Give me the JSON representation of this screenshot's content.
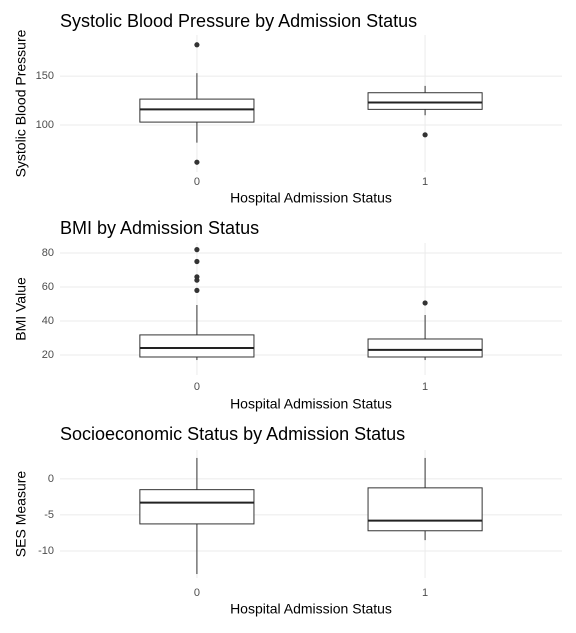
{
  "chart_data": [
    {
      "type": "box",
      "title": "Systolic Blood Pressure by Admission Status",
      "x_label": "Hospital Admission Status",
      "y_label": "Systolic Blood Pressure",
      "categories": [
        "0",
        "1"
      ],
      "boxes": [
        {
          "whisker_low": 82,
          "q1": 103,
          "median": 116,
          "q3": 126.5,
          "whisker_high": 153,
          "outliers": [
            182,
            62
          ]
        },
        {
          "whisker_low": 110,
          "q1": 116,
          "median": 123,
          "q3": 133,
          "whisker_high": 140,
          "outliers": [
            90
          ]
        }
      ],
      "ylim": [
        52,
        192
      ],
      "yticks": [
        100,
        150
      ],
      "grid": true
    },
    {
      "type": "box",
      "title": "BMI by Admission Status",
      "x_label": "Hospital Admission Status",
      "y_label": "BMI Value",
      "categories": [
        "0",
        "1"
      ],
      "boxes": [
        {
          "whisker_low": 17,
          "q1": 18.8,
          "median": 24.1,
          "q3": 31.8,
          "whisker_high": 49.4,
          "outliers": [
            82,
            75,
            66,
            64,
            58
          ]
        },
        {
          "whisker_low": 17,
          "q1": 18.8,
          "median": 23,
          "q3": 29.4,
          "whisker_high": 43.5,
          "outliers": [
            50.6
          ]
        }
      ],
      "ylim": [
        8.2,
        85.9
      ],
      "yticks": [
        20,
        40,
        60,
        80
      ],
      "grid": true
    },
    {
      "type": "box",
      "title": "Socioeconomic Status by Admission Status",
      "x_label": "Hospital Admission Status",
      "y_label": "SES Measure",
      "categories": [
        "0",
        "1"
      ],
      "boxes": [
        {
          "whisker_low": -13.2,
          "q1": -6.25,
          "median": -3.3,
          "q3": -1.5,
          "whisker_high": 2.9,
          "outliers": []
        },
        {
          "whisker_low": -8.5,
          "q1": -7.2,
          "median": -5.8,
          "q3": -1.25,
          "whisker_high": 2.9,
          "outliers": []
        }
      ],
      "ylim": [
        -13.75,
        4.0
      ],
      "yticks": [
        -10,
        -5,
        0
      ],
      "grid": true
    }
  ]
}
